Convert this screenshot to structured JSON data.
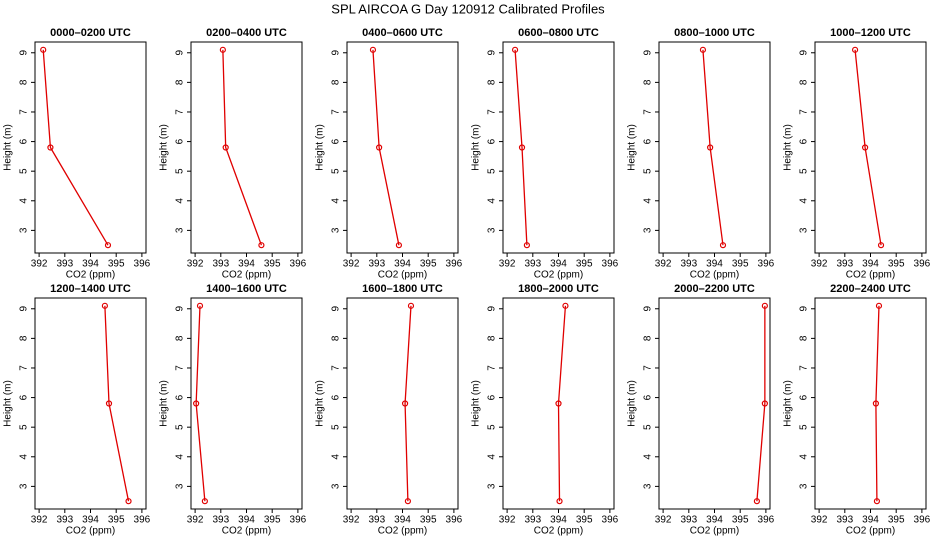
{
  "title": "SPL AIRCOA G  Day 120912  Calibrated Profiles",
  "chart_data": [
    {
      "type": "line",
      "title": "0000–0200 UTC",
      "xlabel": "CO2 (ppm)",
      "ylabel": "Height (m)",
      "color": "#e00000",
      "x": [
        392.16,
        392.44,
        394.68
      ],
      "values": [
        9.1,
        5.8,
        2.5
      ],
      "xlim": [
        391.84,
        396.16
      ],
      "ylim": [
        2.236,
        9.364
      ],
      "xticks": [
        392,
        393,
        394,
        395,
        396
      ],
      "yticks": [
        3,
        4,
        5,
        6,
        7,
        8,
        9
      ]
    },
    {
      "type": "line",
      "title": "0200–0400 UTC",
      "xlabel": "CO2 (ppm)",
      "ylabel": "Height (m)",
      "color": "#e00000",
      "x": [
        393.08,
        393.19,
        394.58
      ],
      "values": [
        9.1,
        5.8,
        2.5
      ],
      "xlim": [
        391.84,
        396.16
      ],
      "ylim": [
        2.236,
        9.364
      ],
      "xticks": [
        392,
        393,
        394,
        395,
        396
      ],
      "yticks": [
        3,
        4,
        5,
        6,
        7,
        8,
        9
      ]
    },
    {
      "type": "line",
      "title": "0400–0600 UTC",
      "xlabel": "CO2 (ppm)",
      "ylabel": "Height (m)",
      "color": "#e00000",
      "x": [
        392.85,
        393.09,
        393.86
      ],
      "values": [
        9.1,
        5.8,
        2.5
      ],
      "xlim": [
        391.84,
        396.16
      ],
      "ylim": [
        2.236,
        9.364
      ],
      "xticks": [
        392,
        393,
        394,
        395,
        396
      ],
      "yticks": [
        3,
        4,
        5,
        6,
        7,
        8,
        9
      ]
    },
    {
      "type": "line",
      "title": "0600–0800 UTC",
      "xlabel": "CO2 (ppm)",
      "ylabel": "Height (m)",
      "color": "#e00000",
      "x": [
        392.31,
        392.58,
        392.77
      ],
      "values": [
        9.1,
        5.8,
        2.5
      ],
      "xlim": [
        391.84,
        396.16
      ],
      "ylim": [
        2.236,
        9.364
      ],
      "xticks": [
        392,
        393,
        394,
        395,
        396
      ],
      "yticks": [
        3,
        4,
        5,
        6,
        7,
        8,
        9
      ]
    },
    {
      "type": "line",
      "title": "0800–1000 UTC",
      "xlabel": "CO2 (ppm)",
      "ylabel": "Height (m)",
      "color": "#e00000",
      "x": [
        393.55,
        393.83,
        394.33
      ],
      "values": [
        9.1,
        5.8,
        2.5
      ],
      "xlim": [
        391.84,
        396.16
      ],
      "ylim": [
        2.236,
        9.364
      ],
      "xticks": [
        392,
        393,
        394,
        395,
        396
      ],
      "yticks": [
        3,
        4,
        5,
        6,
        7,
        8,
        9
      ]
    },
    {
      "type": "line",
      "title": "1000–1200 UTC",
      "xlabel": "CO2 (ppm)",
      "ylabel": "Height (m)",
      "color": "#e00000",
      "x": [
        393.4,
        393.79,
        394.41
      ],
      "values": [
        9.1,
        5.8,
        2.5
      ],
      "xlim": [
        391.84,
        396.16
      ],
      "ylim": [
        2.236,
        9.364
      ],
      "xticks": [
        392,
        393,
        394,
        395,
        396
      ],
      "yticks": [
        3,
        4,
        5,
        6,
        7,
        8,
        9
      ]
    },
    {
      "type": "line",
      "title": "1200–1400 UTC",
      "xlabel": "CO2 (ppm)",
      "ylabel": "Height (m)",
      "color": "#e00000",
      "x": [
        394.56,
        394.72,
        395.48
      ],
      "values": [
        9.1,
        5.8,
        2.5
      ],
      "xlim": [
        391.84,
        396.16
      ],
      "ylim": [
        2.236,
        9.364
      ],
      "xticks": [
        392,
        393,
        394,
        395,
        396
      ],
      "yticks": [
        3,
        4,
        5,
        6,
        7,
        8,
        9
      ]
    },
    {
      "type": "line",
      "title": "1400–1600 UTC",
      "xlabel": "CO2 (ppm)",
      "ylabel": "Height (m)",
      "color": "#e00000",
      "x": [
        392.19,
        392.04,
        392.38
      ],
      "values": [
        9.1,
        5.8,
        2.5
      ],
      "xlim": [
        391.84,
        396.16
      ],
      "ylim": [
        2.236,
        9.364
      ],
      "xticks": [
        392,
        393,
        394,
        395,
        396
      ],
      "yticks": [
        3,
        4,
        5,
        6,
        7,
        8,
        9
      ]
    },
    {
      "type": "line",
      "title": "1600–1800 UTC",
      "xlabel": "CO2 (ppm)",
      "ylabel": "Height (m)",
      "color": "#e00000",
      "x": [
        394.33,
        394.1,
        394.21
      ],
      "values": [
        9.1,
        5.8,
        2.5
      ],
      "xlim": [
        391.84,
        396.16
      ],
      "ylim": [
        2.236,
        9.364
      ],
      "xticks": [
        392,
        393,
        394,
        395,
        396
      ],
      "yticks": [
        3,
        4,
        5,
        6,
        7,
        8,
        9
      ]
    },
    {
      "type": "line",
      "title": "1800–2000 UTC",
      "xlabel": "CO2 (ppm)",
      "ylabel": "Height (m)",
      "color": "#e00000",
      "x": [
        394.27,
        394.0,
        394.04
      ],
      "values": [
        9.1,
        5.8,
        2.5
      ],
      "xlim": [
        391.84,
        396.16
      ],
      "ylim": [
        2.236,
        9.364
      ],
      "xticks": [
        392,
        393,
        394,
        395,
        396
      ],
      "yticks": [
        3,
        4,
        5,
        6,
        7,
        8,
        9
      ]
    },
    {
      "type": "line",
      "title": "2000–2200 UTC",
      "xlabel": "CO2 (ppm)",
      "ylabel": "Height (m)",
      "color": "#e00000",
      "x": [
        395.96,
        395.96,
        395.65
      ],
      "values": [
        9.1,
        5.8,
        2.5
      ],
      "xlim": [
        391.84,
        396.16
      ],
      "ylim": [
        2.236,
        9.364
      ],
      "xticks": [
        392,
        393,
        394,
        395,
        396
      ],
      "yticks": [
        3,
        4,
        5,
        6,
        7,
        8,
        9
      ]
    },
    {
      "type": "line",
      "title": "2200–2400 UTC",
      "xlabel": "CO2 (ppm)",
      "ylabel": "Height (m)",
      "color": "#e00000",
      "x": [
        394.33,
        394.21,
        394.25
      ],
      "values": [
        9.1,
        5.8,
        2.5
      ],
      "xlim": [
        391.84,
        396.16
      ],
      "ylim": [
        2.236,
        9.364
      ],
      "xticks": [
        392,
        393,
        394,
        395,
        396
      ],
      "yticks": [
        3,
        4,
        5,
        6,
        7,
        8,
        9
      ]
    }
  ]
}
